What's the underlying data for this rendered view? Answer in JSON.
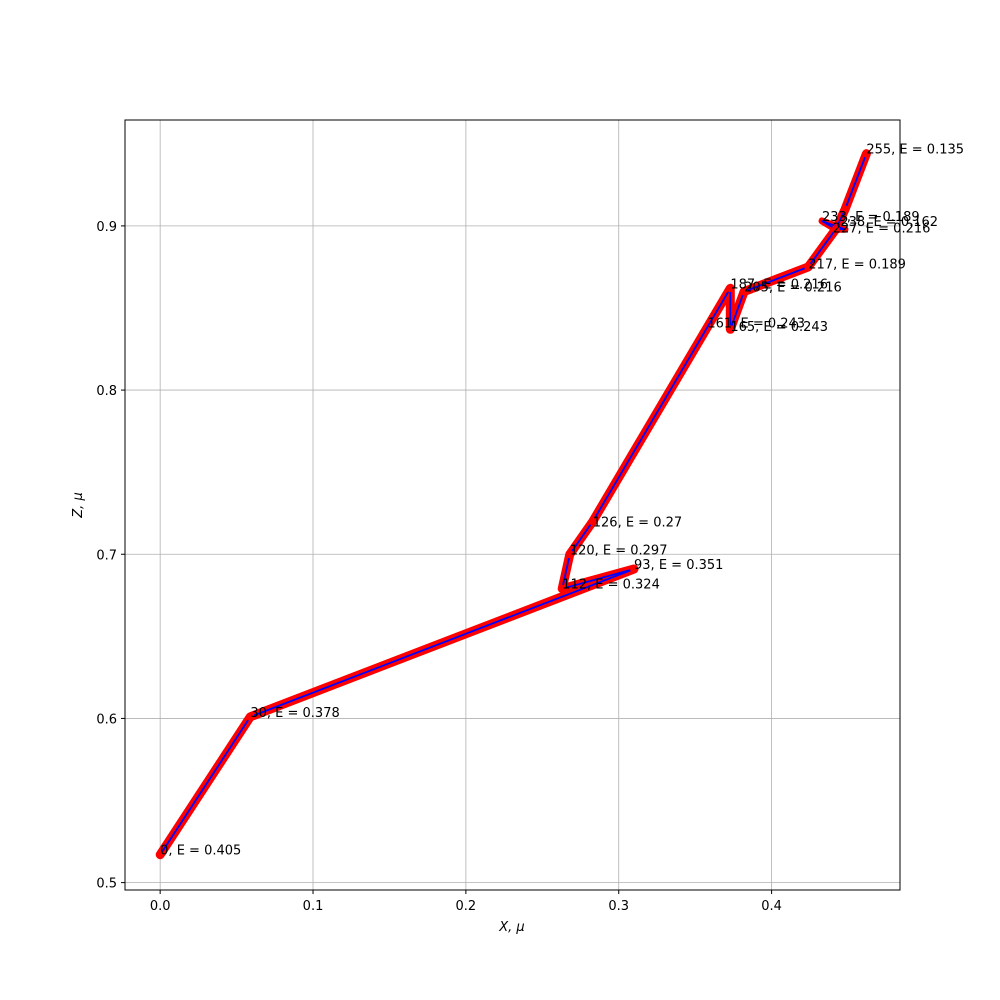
{
  "chart_data": {
    "type": "line",
    "xlabel": "X, μ",
    "ylabel": "Z, μ",
    "xlim": [
      -0.023,
      0.484
    ],
    "ylim": [
      0.4955,
      0.9645
    ],
    "grid": true,
    "xticks": [
      0.0,
      0.1,
      0.2,
      0.3,
      0.4
    ],
    "xtick_labels": [
      "0.0",
      "0.1",
      "0.2",
      "0.3",
      "0.4"
    ],
    "yticks": [
      0.5,
      0.6,
      0.7,
      0.8,
      0.9
    ],
    "ytick_labels": [
      "0.5",
      "0.6",
      "0.7",
      "0.8",
      "0.9"
    ],
    "colors": {
      "line": "#0000ff",
      "points": "#ff0000",
      "grid": "#b0b0b0"
    },
    "path": [
      [
        0.0,
        0.517
      ],
      [
        0.059,
        0.601
      ],
      [
        0.31,
        0.691
      ],
      [
        0.263,
        0.679
      ],
      [
        0.268,
        0.7
      ],
      [
        0.283,
        0.72
      ],
      [
        0.373,
        0.862
      ],
      [
        0.373,
        0.837
      ],
      [
        0.382,
        0.86
      ],
      [
        0.424,
        0.875
      ],
      [
        0.442,
        0.898
      ],
      [
        0.448,
        0.91
      ],
      [
        0.462,
        0.944
      ]
    ],
    "loop": [
      [
        0.442,
        0.898
      ],
      [
        0.433,
        0.903
      ],
      [
        0.448,
        0.898
      ],
      [
        0.442,
        0.898
      ]
    ],
    "annotations": [
      {
        "x": 0.0,
        "y": 0.517,
        "text": "0, E = 0.405"
      },
      {
        "x": 0.059,
        "y": 0.601,
        "text": "30, E = 0.378"
      },
      {
        "x": 0.31,
        "y": 0.691,
        "text": "93, E = 0.351"
      },
      {
        "x": 0.263,
        "y": 0.679,
        "text": "112, E = 0.324"
      },
      {
        "x": 0.268,
        "y": 0.7,
        "text": "120, E = 0.297"
      },
      {
        "x": 0.283,
        "y": 0.717,
        "text": "126, E = 0.27"
      },
      {
        "x": 0.358,
        "y": 0.838,
        "text": "161, E = 0.243"
      },
      {
        "x": 0.373,
        "y": 0.836,
        "text": "165, E = 0.243"
      },
      {
        "x": 0.373,
        "y": 0.862,
        "text": "187, E = 0.216"
      },
      {
        "x": 0.382,
        "y": 0.86,
        "text": "205, E = 0.216"
      },
      {
        "x": 0.424,
        "y": 0.874,
        "text": "217, E = 0.189"
      },
      {
        "x": 0.44,
        "y": 0.896,
        "text": "227, E = 0.216"
      },
      {
        "x": 0.433,
        "y": 0.903,
        "text": "233, E = 0.189"
      },
      {
        "x": 0.445,
        "y": 0.9,
        "text": "238, E = 0.162"
      },
      {
        "x": 0.462,
        "y": 0.944,
        "text": "255, E = 0.135"
      }
    ]
  }
}
